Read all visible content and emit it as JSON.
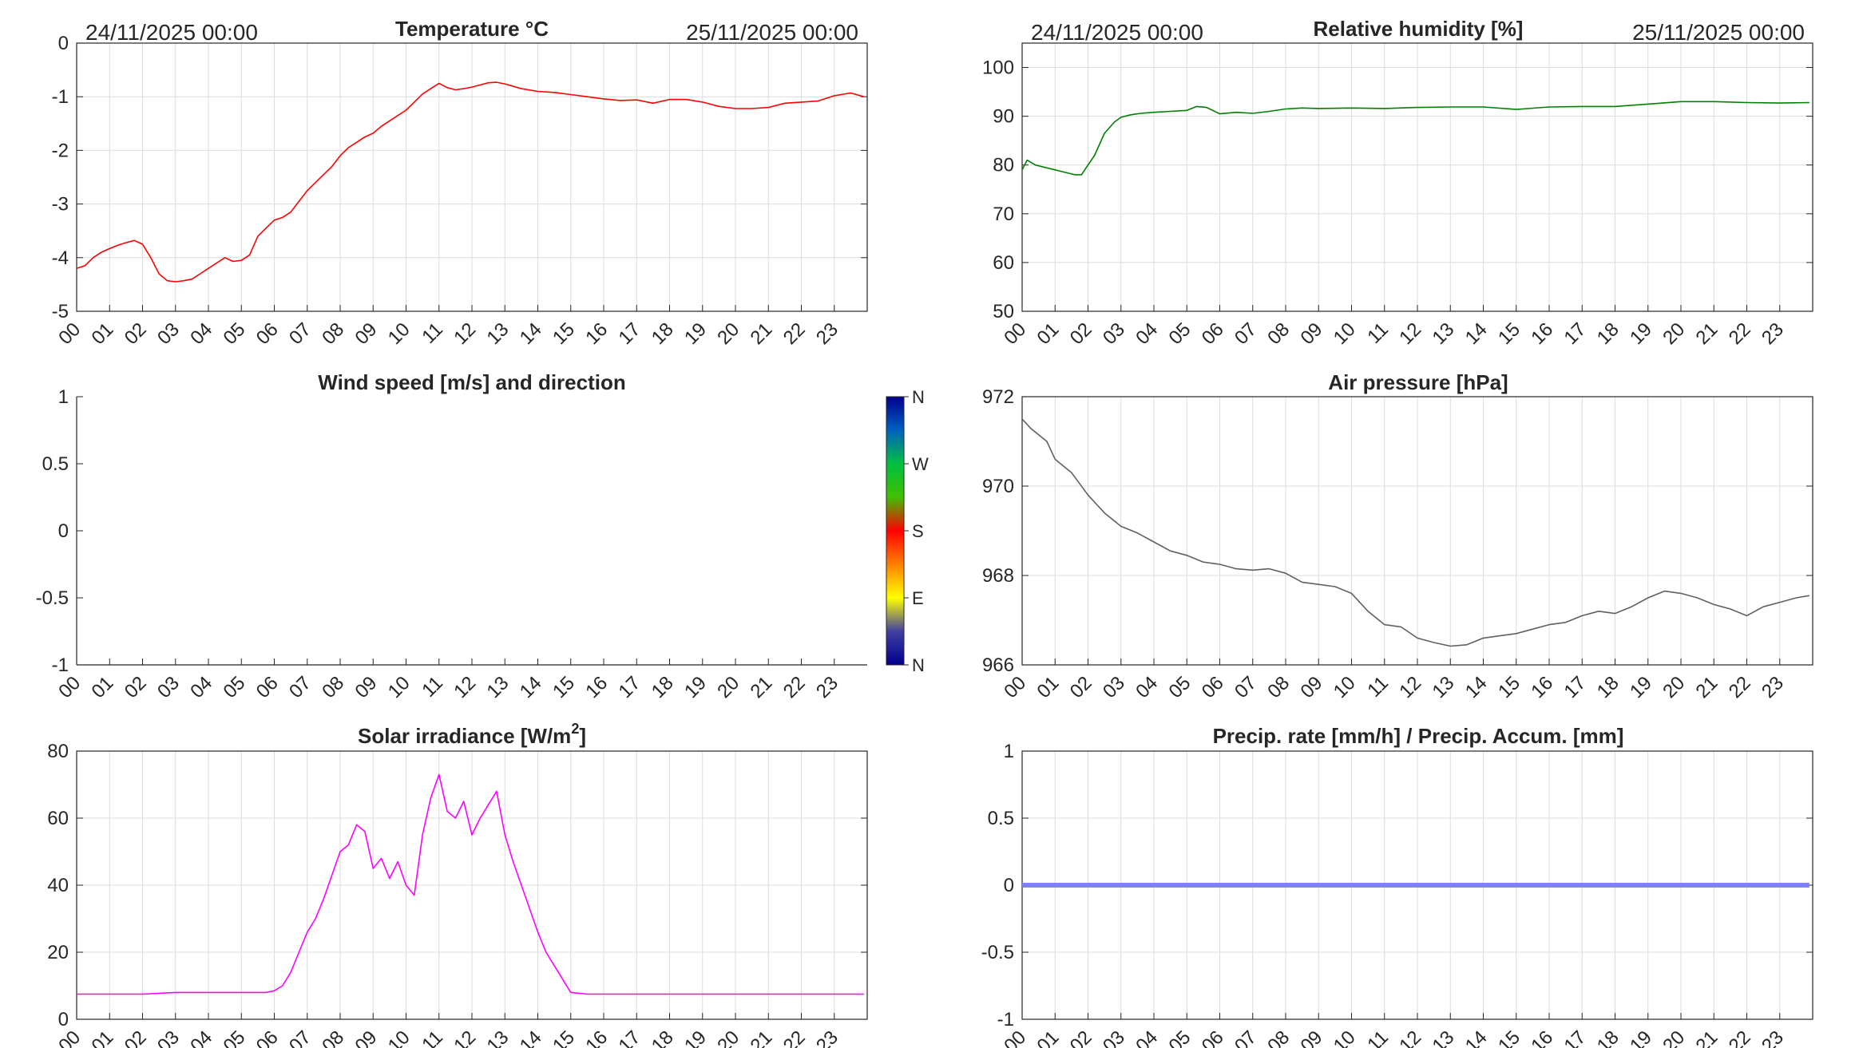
{
  "hours": [
    "00",
    "01",
    "02",
    "03",
    "04",
    "05",
    "06",
    "07",
    "08",
    "09",
    "10",
    "11",
    "12",
    "13",
    "14",
    "15",
    "16",
    "17",
    "18",
    "19",
    "20",
    "21",
    "22",
    "23"
  ],
  "date_start": "24/11/2025 00:00",
  "date_end": "25/11/2025 00:00",
  "colors": {
    "temperature": "#ff0000",
    "humidity": "#008000",
    "pressure": "#606060",
    "solar": "#ff00ff",
    "precip": "#7f7fff",
    "grid": "#dcdcdc",
    "axis": "#262626"
  },
  "wind_colorbar": {
    "labels": [
      "N",
      "W",
      "S",
      "E",
      "N"
    ],
    "colormap": "jet"
  },
  "chart_data": [
    {
      "id": "temperature",
      "type": "line",
      "title": "Temperature °C",
      "ylim": [
        -5,
        0
      ],
      "yticks": [
        "0",
        "-1",
        "-2",
        "-3",
        "-4",
        "-5"
      ],
      "grid": true,
      "x_hours": [
        0,
        0.25,
        0.5,
        0.75,
        1,
        1.25,
        1.5,
        1.75,
        2,
        2.25,
        2.5,
        2.75,
        3,
        3.25,
        3.5,
        3.75,
        4,
        4.25,
        4.5,
        4.75,
        5,
        5.25,
        5.5,
        5.75,
        6,
        6.25,
        6.5,
        6.75,
        7,
        7.25,
        7.5,
        7.75,
        8,
        8.25,
        8.5,
        8.75,
        9,
        9.25,
        9.5,
        9.75,
        10,
        10.25,
        10.5,
        10.75,
        11,
        11.25,
        11.5,
        11.75,
        12,
        12.25,
        12.5,
        12.75,
        13,
        13.5,
        14,
        14.5,
        15,
        15.5,
        16,
        16.5,
        17,
        17.5,
        18,
        18.5,
        19,
        19.5,
        20,
        20.5,
        21,
        21.5,
        22,
        22.5,
        23,
        23.5,
        23.9
      ],
      "values": [
        -4.2,
        -4.15,
        -4.0,
        -3.9,
        -3.83,
        -3.77,
        -3.72,
        -3.68,
        -3.75,
        -4.0,
        -4.3,
        -4.43,
        -4.45,
        -4.43,
        -4.4,
        -4.3,
        -4.2,
        -4.1,
        -4.0,
        -4.07,
        -4.05,
        -3.95,
        -3.6,
        -3.45,
        -3.3,
        -3.25,
        -3.15,
        -2.95,
        -2.75,
        -2.6,
        -2.45,
        -2.3,
        -2.1,
        -1.95,
        -1.85,
        -1.75,
        -1.68,
        -1.55,
        -1.45,
        -1.35,
        -1.25,
        -1.1,
        -0.95,
        -0.85,
        -0.75,
        -0.83,
        -0.87,
        -0.85,
        -0.82,
        -0.78,
        -0.74,
        -0.73,
        -0.76,
        -0.85,
        -0.9,
        -0.92,
        -0.96,
        -1.0,
        -1.04,
        -1.07,
        -1.06,
        -1.12,
        -1.05,
        -1.05,
        -1.1,
        -1.18,
        -1.22,
        -1.22,
        -1.2,
        -1.12,
        -1.1,
        -1.08,
        -0.98,
        -0.93,
        -1.0
      ]
    },
    {
      "id": "humidity",
      "type": "line",
      "title": "Relative humidity [%]",
      "ylim": [
        50,
        105
      ],
      "yticks": [
        "100",
        "90",
        "80",
        "70",
        "60",
        "50"
      ],
      "grid": true,
      "x_hours": [
        0,
        0.15,
        0.4,
        0.7,
        1,
        1.3,
        1.6,
        1.8,
        2,
        2.2,
        2.5,
        2.8,
        3,
        3.3,
        3.6,
        4,
        4.5,
        5,
        5.3,
        5.6,
        6,
        6.5,
        7,
        7.5,
        8,
        8.5,
        9,
        10,
        11,
        12,
        13,
        14,
        15,
        16,
        17,
        18,
        19,
        20,
        21,
        22,
        23,
        23.9
      ],
      "values": [
        79,
        81,
        80,
        79.5,
        79,
        78.5,
        78,
        78,
        80,
        82,
        86.5,
        88.8,
        89.8,
        90.3,
        90.6,
        90.8,
        91.0,
        91.2,
        92.0,
        91.8,
        90.5,
        90.8,
        90.6,
        91.0,
        91.5,
        91.7,
        91.6,
        91.7,
        91.6,
        91.8,
        91.9,
        91.9,
        91.4,
        91.9,
        92.0,
        92.0,
        92.5,
        93.0,
        93.0,
        92.8,
        92.7,
        92.8
      ]
    },
    {
      "id": "wind",
      "type": "scatter",
      "title": "Wind speed [m/s] and direction",
      "ylim": [
        -1,
        1
      ],
      "yticks": [
        "1",
        "0.5",
        "0",
        "-0.5",
        "-1"
      ],
      "grid": false,
      "values": []
    },
    {
      "id": "pressure",
      "type": "line",
      "title": "Air pressure [hPa]",
      "ylim": [
        966,
        972
      ],
      "yticks": [
        "972",
        "970",
        "968",
        "966"
      ],
      "grid": true,
      "x_hours": [
        0,
        0.25,
        0.5,
        0.75,
        1,
        1.5,
        2,
        2.5,
        3,
        3.5,
        4,
        4.5,
        5,
        5.5,
        6,
        6.5,
        7,
        7.5,
        8,
        8.5,
        9,
        9.5,
        10,
        10.5,
        11,
        11.5,
        12,
        12.5,
        13,
        13.5,
        14,
        14.5,
        15,
        15.5,
        16,
        16.5,
        17,
        17.5,
        18,
        18.5,
        19,
        19.5,
        20,
        20.5,
        21,
        21.5,
        22,
        22.5,
        23,
        23.5,
        23.9
      ],
      "values": [
        971.5,
        971.3,
        971.15,
        971.0,
        970.6,
        970.3,
        969.8,
        969.4,
        969.1,
        968.95,
        968.75,
        968.55,
        968.45,
        968.3,
        968.25,
        968.15,
        968.12,
        968.15,
        968.05,
        967.85,
        967.8,
        967.75,
        967.6,
        967.2,
        966.9,
        966.85,
        966.6,
        966.5,
        966.42,
        966.45,
        966.6,
        966.65,
        966.7,
        966.8,
        966.9,
        966.95,
        967.1,
        967.2,
        967.15,
        967.3,
        967.5,
        967.65,
        967.6,
        967.5,
        967.35,
        967.25,
        967.1,
        967.3,
        967.4,
        967.5,
        967.55
      ]
    },
    {
      "id": "solar",
      "type": "line",
      "title": "Solar irradiance [W/m",
      "title_sup": "2",
      "title_end": "]",
      "ylim": [
        0,
        80
      ],
      "yticks": [
        "80",
        "60",
        "40",
        "20",
        "0"
      ],
      "grid": true,
      "x_hours": [
        0,
        1,
        2,
        3,
        4,
        5,
        5.75,
        6,
        6.25,
        6.5,
        6.75,
        7,
        7.25,
        7.5,
        7.75,
        8,
        8.25,
        8.5,
        8.75,
        9,
        9.25,
        9.5,
        9.75,
        10,
        10.25,
        10.5,
        10.75,
        11,
        11.25,
        11.5,
        11.75,
        12,
        12.25,
        12.5,
        12.75,
        13,
        13.25,
        13.5,
        13.75,
        14,
        14.25,
        14.5,
        14.75,
        15,
        15.5,
        16,
        17,
        18,
        19,
        20,
        21,
        22,
        23,
        23.9
      ],
      "values": [
        7.5,
        7.5,
        7.5,
        8,
        8,
        8,
        8,
        8.5,
        10,
        14,
        20,
        26,
        30,
        36,
        43,
        50,
        52,
        58,
        56,
        45,
        48,
        42,
        47,
        40,
        37,
        55,
        66,
        73,
        62,
        60,
        65,
        55,
        60,
        64,
        68,
        55,
        47,
        40,
        33,
        26,
        20,
        16,
        12,
        8,
        7.5,
        7.5,
        7.5,
        7.5,
        7.5,
        7.5,
        7.5,
        7.5,
        7.5,
        7.5
      ]
    },
    {
      "id": "precip",
      "type": "line",
      "title": "Precip. rate [mm/h] / Precip. Accum. [mm]",
      "ylim": [
        -1,
        1
      ],
      "yticks": [
        "1",
        "0.5",
        "0",
        "-0.5",
        "-1"
      ],
      "grid": true,
      "x_hours": [
        0,
        23.9
      ],
      "values": [
        0,
        0
      ]
    }
  ]
}
